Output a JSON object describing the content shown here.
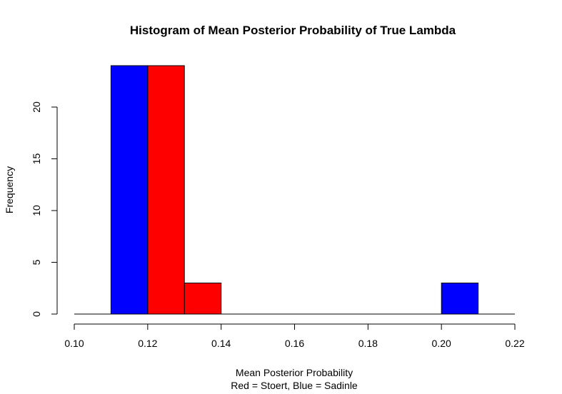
{
  "chart_data": {
    "type": "bar",
    "title": "Histogram of Mean Posterior Probability of True Lambda",
    "xlabel": "Mean Posterior Probability",
    "xlabel_sub": "Red = Stoert, Blue = Sadinle",
    "ylabel": "Frequency",
    "xlim": [
      0.1,
      0.22
    ],
    "ylim": [
      0,
      24
    ],
    "x_ticks": [
      {
        "value": 0.1,
        "label": "0.10"
      },
      {
        "value": 0.12,
        "label": "0.12"
      },
      {
        "value": 0.14,
        "label": "0.14"
      },
      {
        "value": 0.16,
        "label": "0.16"
      },
      {
        "value": 0.18,
        "label": "0.18"
      },
      {
        "value": 0.2,
        "label": "0.20"
      },
      {
        "value": 0.22,
        "label": "0.22"
      }
    ],
    "y_ticks": [
      {
        "value": 0,
        "label": "0"
      },
      {
        "value": 5,
        "label": "5"
      },
      {
        "value": 10,
        "label": "10"
      },
      {
        "value": 15,
        "label": "15"
      },
      {
        "value": 20,
        "label": "20"
      }
    ],
    "series": [
      {
        "color": "#ff0000",
        "bins": [
          {
            "x0": 0.12,
            "x1": 0.13,
            "count": 24
          },
          {
            "x0": 0.13,
            "x1": 0.14,
            "count": 3
          }
        ]
      },
      {
        "color": "#0000ff",
        "bins": [
          {
            "x0": 0.11,
            "x1": 0.12,
            "count": 24
          },
          {
            "x0": 0.2,
            "x1": 0.21,
            "count": 3
          }
        ]
      }
    ],
    "baseline": {
      "x0": 0.1,
      "x1": 0.22
    },
    "grid": false,
    "legend": "none"
  }
}
